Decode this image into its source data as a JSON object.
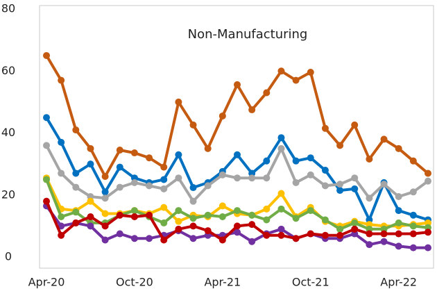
{
  "chart_data": {
    "type": "line",
    "title": "Non-Manufacturing",
    "categories": [
      "Apr-20",
      null,
      null,
      null,
      null,
      null,
      "Oct-20",
      null,
      null,
      null,
      null,
      null,
      "Apr-21",
      null,
      null,
      null,
      null,
      null,
      "Oct-21",
      null,
      null,
      null,
      null,
      null,
      "Apr-22",
      null,
      null
    ],
    "ylim": [
      0,
      80
    ],
    "yticks": [
      0,
      20,
      40,
      60,
      80
    ],
    "grid": false,
    "series": [
      {
        "color": "#c55a11",
        "values": [
          65,
          57,
          41,
          35,
          26,
          34.5,
          33.6,
          32,
          29,
          50,
          42.6,
          35,
          45.5,
          55.6,
          47.5,
          53,
          60,
          57,
          59.6,
          41.5,
          36,
          42.6,
          31.6,
          38,
          35,
          31,
          27
        ]
      },
      {
        "color": "#0070c0",
        "values": [
          45,
          37,
          27,
          30,
          21,
          29,
          25.5,
          24,
          25,
          33,
          22.4,
          24,
          27.6,
          33,
          27,
          31,
          38.5,
          31,
          32,
          28,
          21.5,
          22,
          12,
          24,
          15,
          13.5,
          12
        ]
      },
      {
        "color": "#a5a5a5",
        "values": [
          36,
          27,
          22.5,
          19.5,
          19,
          22.5,
          24,
          23,
          22,
          25.5,
          18,
          23,
          26.5,
          25.5,
          25.5,
          25.5,
          35,
          24,
          26.5,
          23,
          23.5,
          25.5,
          19,
          23.5,
          19.5,
          21,
          24.5
        ]
      },
      {
        "color": "#ffc000",
        "values": [
          25.5,
          15.5,
          15,
          18,
          14,
          14,
          15,
          14,
          16,
          11.5,
          13.5,
          13,
          16.5,
          14,
          13.5,
          15.5,
          20.5,
          13,
          16,
          11.5,
          10,
          11.5,
          10.5,
          10,
          10,
          10.5,
          11
        ]
      },
      {
        "color": "#70ad47",
        "values": [
          25,
          13,
          14.5,
          11,
          11,
          13.5,
          15,
          13,
          11,
          15,
          12.5,
          13.5,
          13,
          15,
          13.5,
          12,
          15.5,
          12.5,
          15,
          12,
          9,
          11,
          9,
          9,
          11,
          10,
          9.5
        ]
      },
      {
        "color": "#7030a0",
        "values": [
          16.5,
          10,
          11,
          10,
          5.5,
          7.5,
          6,
          6,
          7,
          8.5,
          6,
          7,
          7,
          8,
          5,
          7.5,
          9,
          6,
          7.5,
          6,
          6,
          7.5,
          4,
          5,
          3.5,
          3,
          3
        ]
      },
      {
        "color": "#c00000",
        "values": [
          18,
          7,
          11,
          13,
          10,
          13.5,
          13,
          13.5,
          5.5,
          9,
          10,
          8.5,
          5.5,
          10,
          10.5,
          7,
          7,
          6,
          7.5,
          7,
          7,
          9,
          7.5,
          7.5,
          7.5,
          7.5,
          8
        ]
      }
    ]
  }
}
